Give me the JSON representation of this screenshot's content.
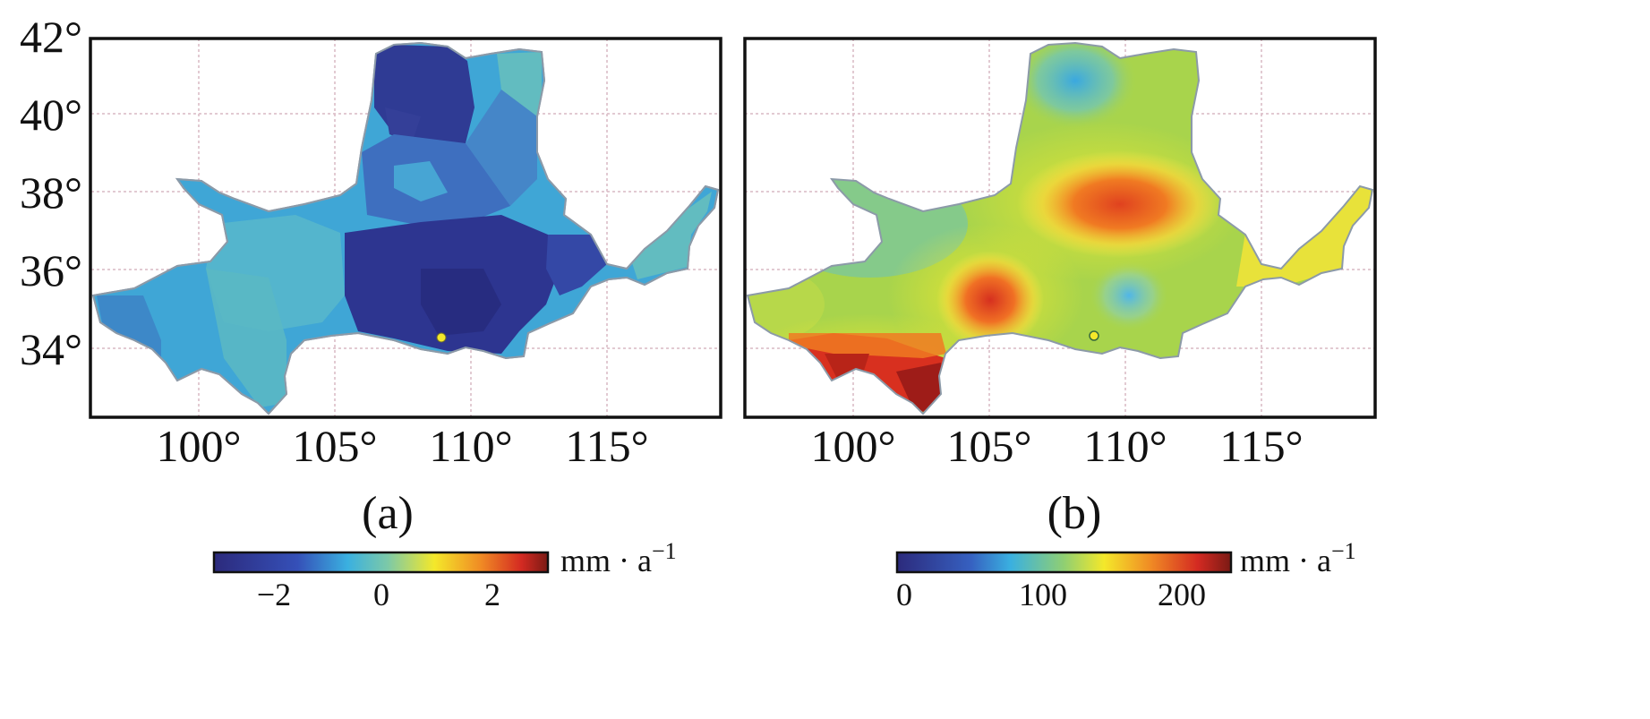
{
  "panels": [
    {
      "id": "a",
      "caption": "(a)",
      "y_ticks": [
        "42°",
        "40°",
        "38°",
        "36°",
        "34°"
      ],
      "x_ticks": [
        "100°",
        "105°",
        "110°",
        "115°"
      ],
      "colorbar": {
        "ticks": [
          "−2",
          "0",
          "2"
        ],
        "unit_main": "mm · a",
        "unit_sup": "−1",
        "range": [
          -3,
          3
        ]
      }
    },
    {
      "id": "b",
      "caption": "(b)",
      "x_ticks": [
        "100°",
        "105°",
        "110°",
        "115°"
      ],
      "colorbar": {
        "ticks": [
          "0",
          "100",
          "200"
        ],
        "unit_main": "mm · a",
        "unit_sup": "−1",
        "range": [
          0,
          230
        ]
      }
    }
  ],
  "colors": {
    "basin_a_base": "#3a9fd0",
    "basin_a_low": "#2a2a8a",
    "basin_b_base": "#a8d44c",
    "hot": "#c42a1f",
    "outline": "#8c9aa8"
  }
}
